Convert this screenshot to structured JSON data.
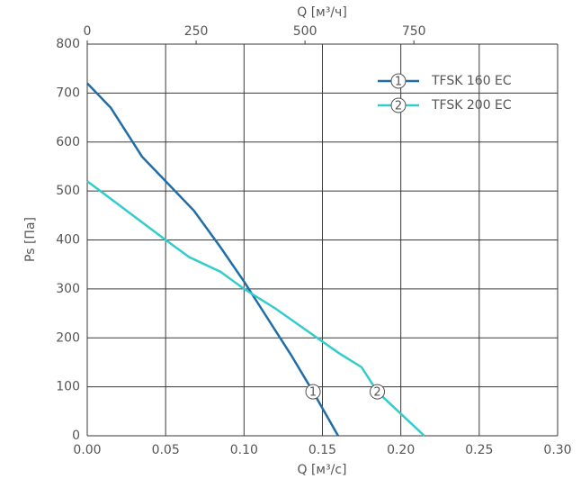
{
  "chart_data": {
    "type": "line",
    "xlabel": "Q [м³/с]",
    "x2label": "Q [м³/ч]",
    "ylabel": "Ps [Па]",
    "xlim": [
      0,
      0.3
    ],
    "xticks": [
      {
        "value": 0,
        "label": "0.00"
      },
      {
        "value": 0.05,
        "label": "0.05"
      },
      {
        "value": 0.1,
        "label": "0.10"
      },
      {
        "value": 0.15,
        "label": "0.15"
      },
      {
        "value": 0.2,
        "label": "0.20"
      },
      {
        "value": 0.25,
        "label": "0.25"
      },
      {
        "value": 0.3,
        "label": "0.30"
      }
    ],
    "x2lim": [
      0,
      1080
    ],
    "x2ticks": [
      0,
      250,
      500,
      750
    ],
    "ylim": [
      0,
      800
    ],
    "yticks": [
      0,
      100,
      200,
      300,
      400,
      500,
      600,
      700,
      800
    ],
    "grid": true,
    "legend": "upper right",
    "series": [
      {
        "name": "TFSK 160 EC",
        "label": "1",
        "color": "#1f6ea8",
        "label_index": 9,
        "x": [
          0,
          0.015,
          0.035,
          0.05,
          0.068,
          0.085,
          0.1,
          0.115,
          0.13,
          0.144,
          0.16
        ],
        "values": [
          720,
          670,
          570,
          520,
          460,
          385,
          315,
          240,
          165,
          90,
          0
        ]
      },
      {
        "name": "TFSK 200 EC",
        "label": "2",
        "color": "#33cccc",
        "label_index": 10,
        "x": [
          0,
          0.025,
          0.05,
          0.065,
          0.085,
          0.1,
          0.12,
          0.14,
          0.16,
          0.175,
          0.185,
          0.2,
          0.215
        ],
        "values": [
          520,
          460,
          400,
          365,
          335,
          300,
          260,
          215,
          170,
          140,
          90,
          45,
          0
        ]
      }
    ]
  }
}
